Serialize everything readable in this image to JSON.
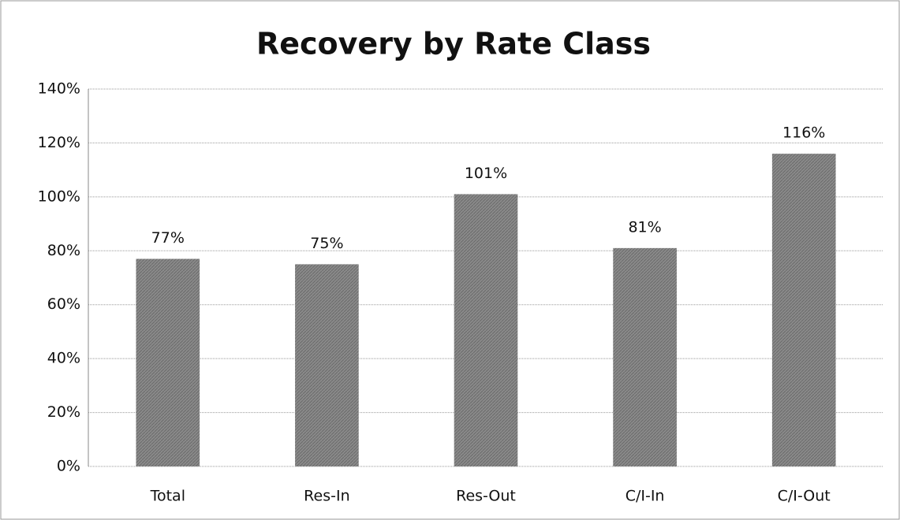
{
  "chart_data": {
    "type": "bar",
    "title": "Recovery by Rate Class",
    "categories": [
      "Total",
      "Res-In",
      "Res-Out",
      "C/I-In",
      "C/I-Out"
    ],
    "values": [
      77,
      75,
      101,
      81,
      116
    ],
    "value_labels": [
      "77%",
      "75%",
      "101%",
      "81%",
      "116%"
    ],
    "color": "#8a8a8a",
    "ylim": [
      0,
      140
    ],
    "yticks": [
      {
        "value": 0,
        "label": "0%"
      },
      {
        "value": 20,
        "label": "20%"
      },
      {
        "value": 40,
        "label": "40%"
      },
      {
        "value": 60,
        "label": "60%"
      },
      {
        "value": 80,
        "label": "80%"
      },
      {
        "value": 100,
        "label": "100%"
      },
      {
        "value": 120,
        "label": "120%"
      },
      {
        "value": 140,
        "label": "140%"
      }
    ],
    "grid": true
  }
}
